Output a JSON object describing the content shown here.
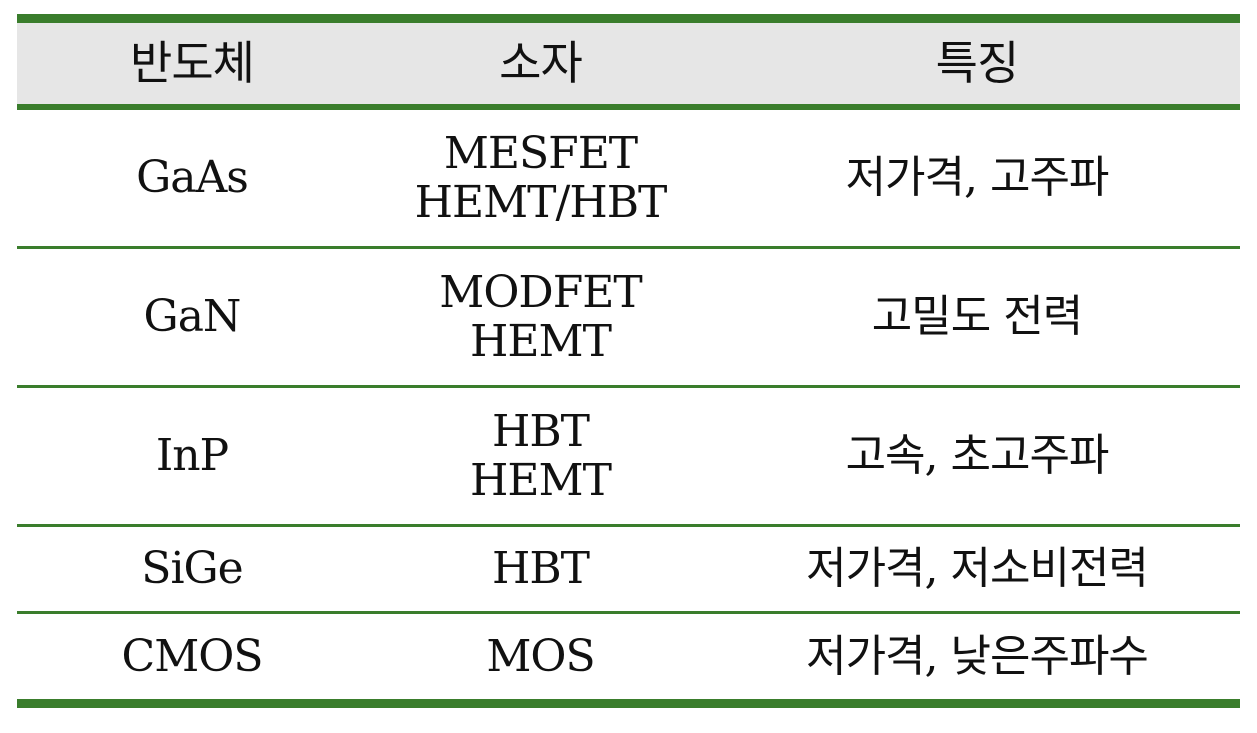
{
  "colors": {
    "header_background": "#e6e6e6",
    "rule_color": "#3a7d2c",
    "text": "#111111"
  },
  "header": {
    "col1": "반도체",
    "col2": "소자",
    "col3": "특징"
  },
  "rows": [
    {
      "semiconductor": "GaAs",
      "device_line1": "MESFET",
      "device_line2": "HEMT/HBT",
      "feature": "저가격, 고주파"
    },
    {
      "semiconductor": "GaN",
      "device_line1": "MODFET",
      "device_line2": "HEMT",
      "feature": "고밀도 전력"
    },
    {
      "semiconductor": "InP",
      "device_line1": "HBT",
      "device_line2": "HEMT",
      "feature": "고속, 초고주파"
    },
    {
      "semiconductor": "SiGe",
      "device_line1": "HBT",
      "device_line2": "",
      "feature": "저가격, 저소비전력"
    },
    {
      "semiconductor": "CMOS",
      "device_line1": "MOS",
      "device_line2": "",
      "feature": "저가격, 낮은주파수"
    }
  ]
}
